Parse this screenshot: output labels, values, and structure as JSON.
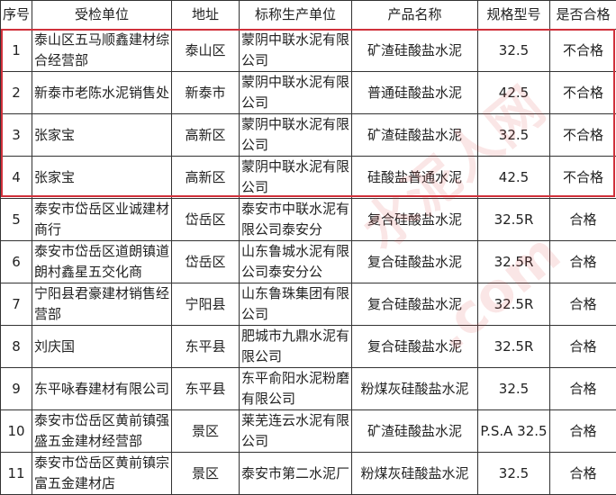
{
  "headers": [
    "序号",
    "受检单位",
    "地址",
    "标称生产单位",
    "产品名称",
    "规格型号",
    "是否合格"
  ],
  "rows": [
    [
      "1",
      "泰山区五马顺鑫建材综合经营部",
      "泰山区",
      "蒙阴中联水泥有限公司",
      "矿渣硅酸盐水泥",
      "32.5",
      "不合格"
    ],
    [
      "2",
      "新泰市老陈水泥销售处",
      "新泰市",
      "蒙阴中联水泥有限公司",
      "普通硅酸盐水泥",
      "42.5",
      "不合格"
    ],
    [
      "3",
      "张家宝",
      "高新区",
      "蒙阴中联水泥有限公司",
      "矿渣硅酸盐水泥",
      "32.5",
      "不合格"
    ],
    [
      "4",
      "张家宝",
      "高新区",
      "蒙阴中联水泥有限公司",
      "硅酸盐普通水泥",
      "42.5",
      "不合格"
    ],
    [
      "5",
      "泰安市岱岳区业诚建材商行",
      "岱岳区",
      "泰安市中联水泥有限公司泰安分",
      "复合硅酸盐水泥",
      "32.5R",
      "合格"
    ],
    [
      "6",
      "泰安市岱岳区道朗镇道朗村鑫星五交化商",
      "岱岳区",
      "山东鲁城水泥有限公司泰安分公",
      "复合硅酸盐水泥",
      "32.5R",
      "合格"
    ],
    [
      "7",
      "宁阳县君豪建材销售经营部",
      "宁阳县",
      "山东鲁珠集团有限公司",
      "复合硅酸盐水泥",
      "32.5R",
      "合格"
    ],
    [
      "8",
      "刘庆国",
      "东平县",
      "肥城市九鼎水泥有限公司",
      "复合硅酸盐水泥",
      "32.5R",
      "合格"
    ],
    [
      "9",
      "东平咏春建材有限公司",
      "东平县",
      "东平俞阳水泥粉磨有限公司",
      "粉煤灰硅酸盐水泥",
      "32.5",
      "合格"
    ],
    [
      "10",
      "泰安市岱岳区黄前镇强盛五金建材经营部",
      "景区",
      "莱芜连云水泥有限公司",
      "矿渣硅酸盐水泥",
      "P.S.A 32.5",
      "合格"
    ],
    [
      "11",
      "泰安市岱岳区黄前镇宗富五金建材店",
      "景区",
      "泰安市第二水泥厂",
      "粉煤灰硅酸盐水泥",
      "32.5",
      "合格"
    ]
  ],
  "highlight": {
    "rows": [
      "1",
      "2",
      "3",
      "4"
    ],
    "color": "#d0303a"
  },
  "watermark": {
    "text1": "水泥人网",
    "text2": ".com"
  }
}
